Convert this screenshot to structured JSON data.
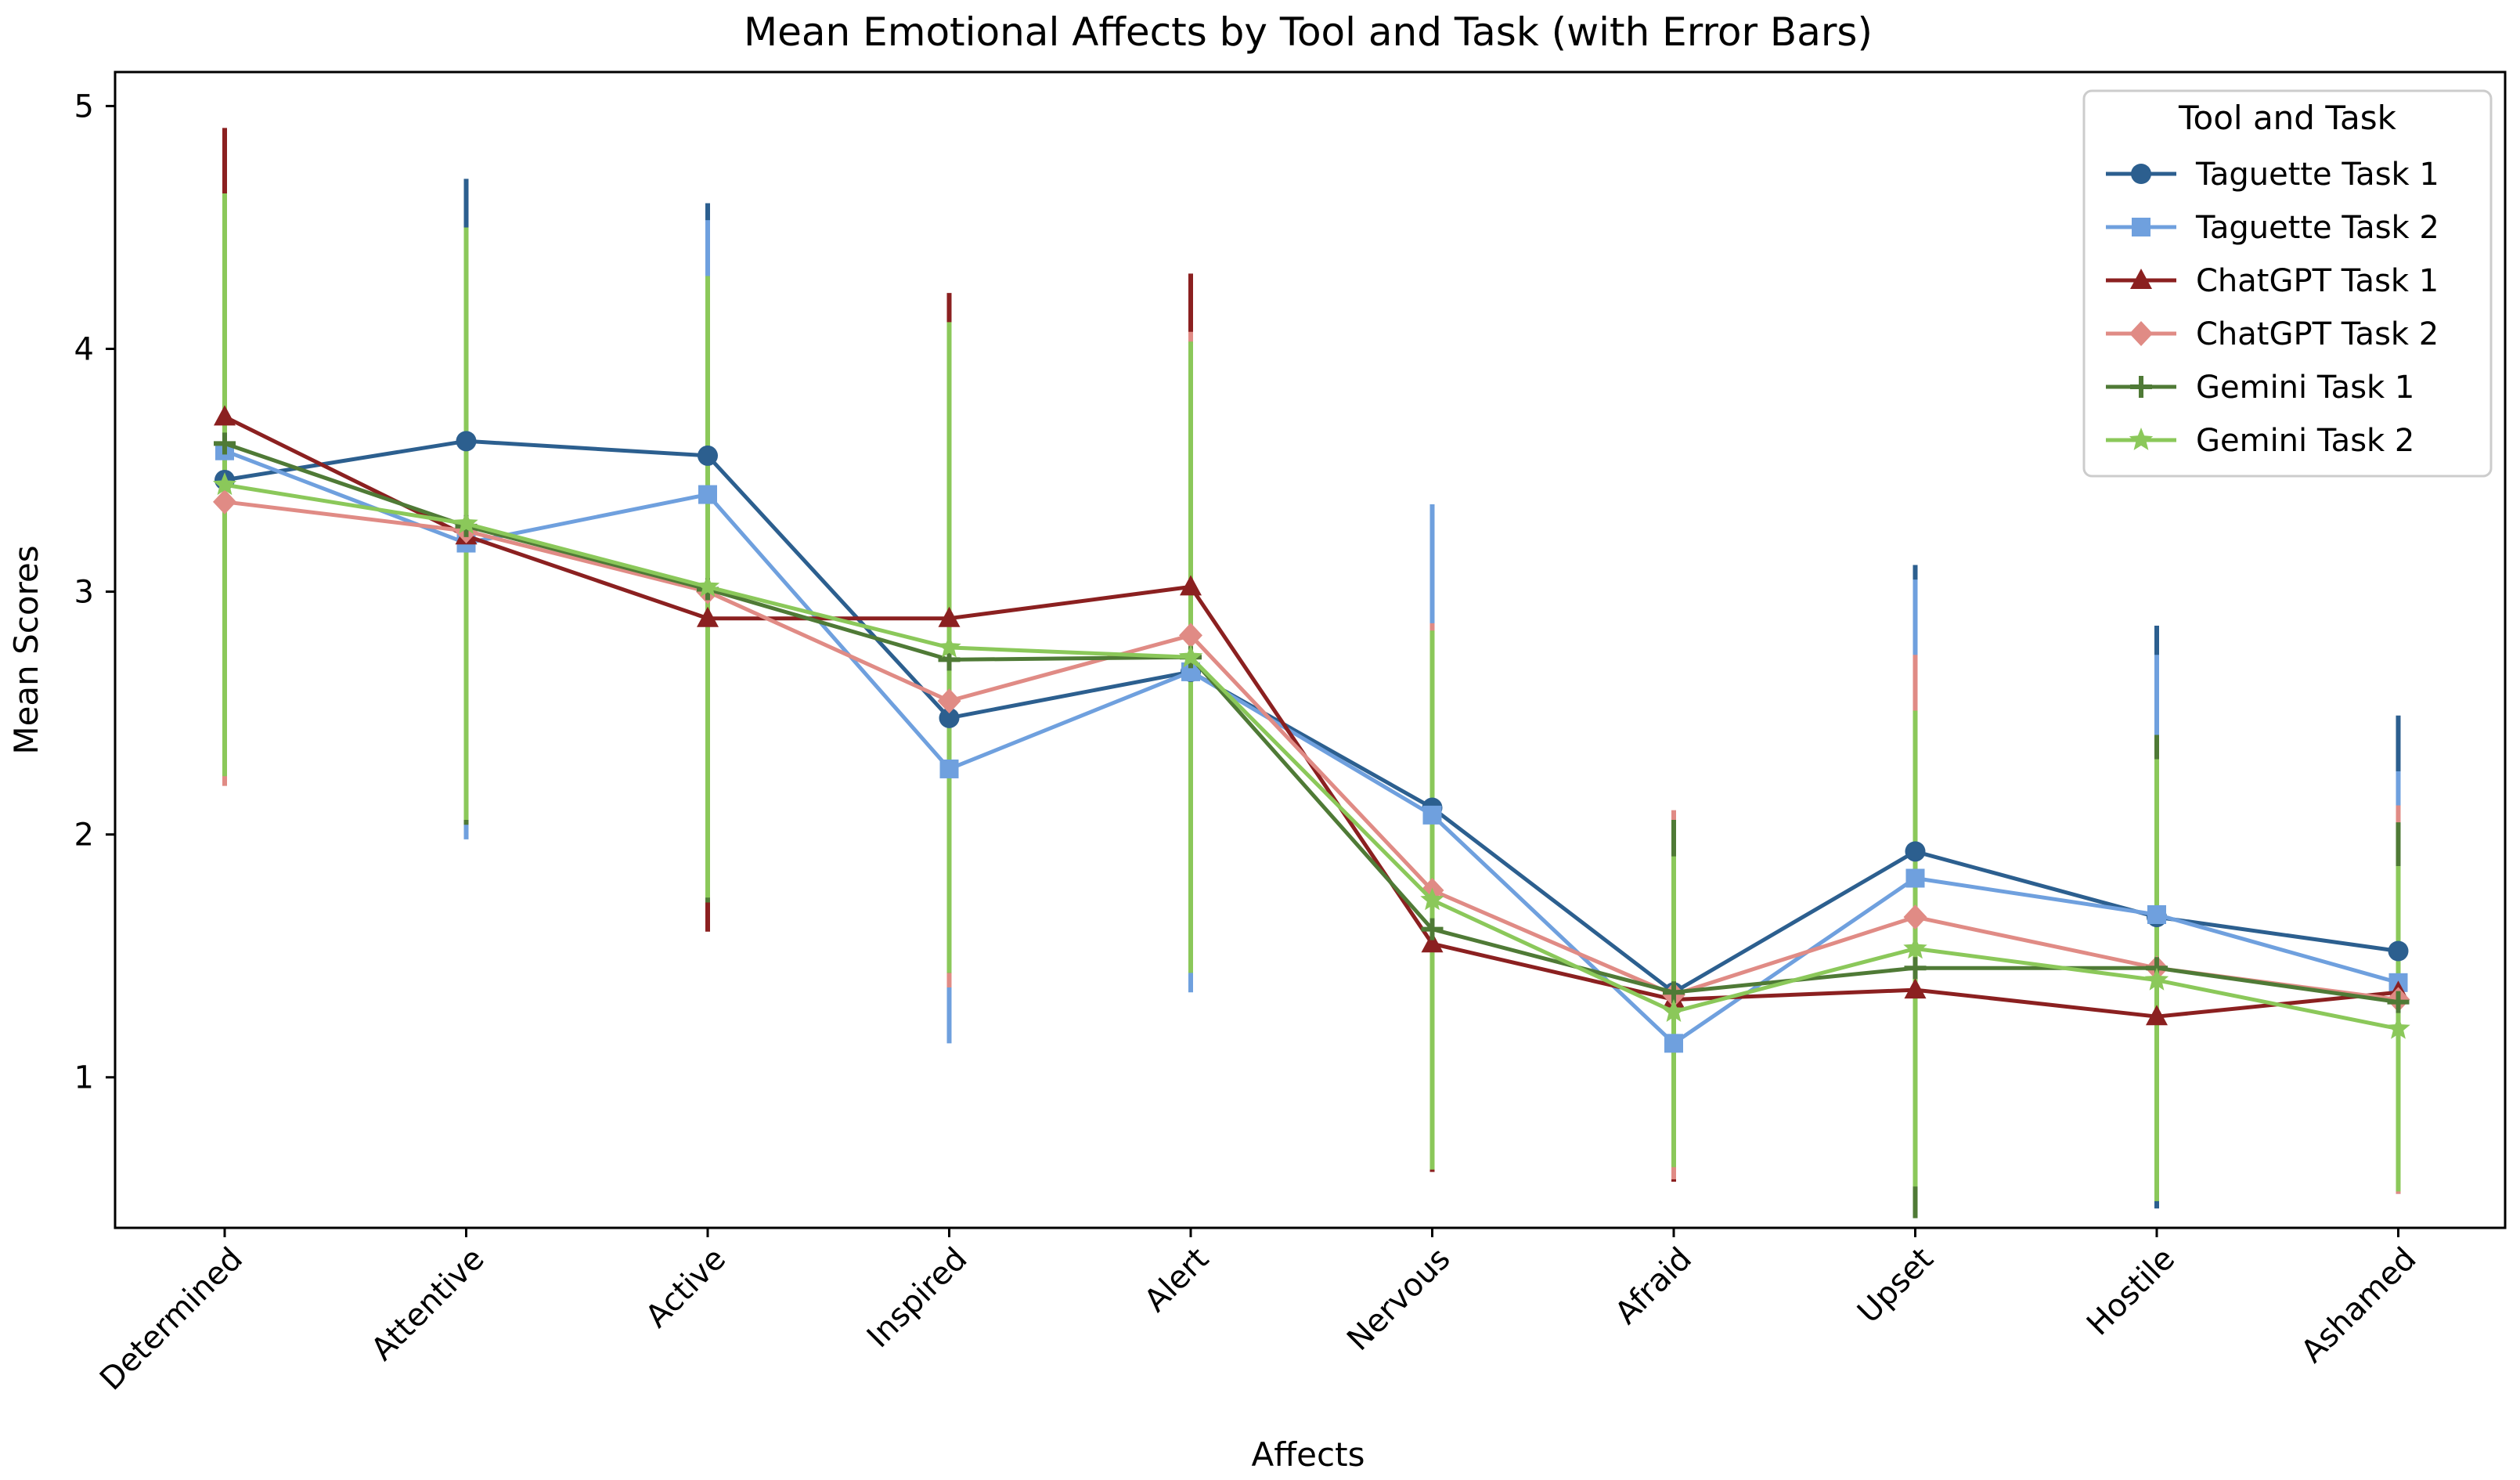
{
  "chart_data": {
    "type": "line",
    "title": "Mean Emotional Affects by Tool and Task (with Error Bars)",
    "xlabel": "Affects",
    "ylabel": "Mean Scores",
    "ylim": [
      0.38,
      5.14
    ],
    "yticks": [
      "1",
      "2",
      "3",
      "4",
      "5"
    ],
    "categories": [
      "Determined",
      "Attentive",
      "Active",
      "Inspired",
      "Alert",
      "Nervous",
      "Afraid",
      "Upset",
      "Hostile",
      "Ashamed"
    ],
    "legend": {
      "title": "Tool and Task",
      "position": "top-right"
    },
    "series": [
      {
        "name": "Taguette Task 1",
        "color": "#2c5f8f",
        "marker": "circle",
        "values": [
          3.46,
          3.62,
          3.56,
          2.48,
          2.67,
          2.11,
          1.35,
          1.93,
          1.66,
          1.52
        ],
        "err": [
          1.2,
          1.08,
          1.04,
          1.18,
          1.3,
          1.05,
          0.73,
          1.18,
          1.2,
          0.97
        ]
      },
      {
        "name": "Taguette Task 2",
        "color": "#6fa0de",
        "marker": "square",
        "values": [
          3.58,
          3.2,
          3.4,
          2.27,
          2.67,
          2.08,
          1.14,
          1.82,
          1.67,
          1.39
        ],
        "err": [
          1.05,
          1.22,
          1.13,
          1.13,
          1.32,
          1.28,
          0.53,
          1.23,
          1.07,
          0.87
        ]
      },
      {
        "name": "ChatGPT Task 1",
        "color": "#8b2020",
        "marker": "triangle",
        "values": [
          3.72,
          3.23,
          2.89,
          2.89,
          3.02,
          1.55,
          1.32,
          1.36,
          1.25,
          1.35
        ],
        "err": [
          1.19,
          1.16,
          1.29,
          1.34,
          1.29,
          0.94,
          0.75,
          0.78,
          0.76,
          0.77
        ]
      },
      {
        "name": "ChatGPT Task 2",
        "color": "#e08b85",
        "marker": "diamond",
        "values": [
          3.37,
          3.25,
          3.0,
          2.55,
          2.82,
          1.77,
          1.34,
          1.66,
          1.45,
          1.32
        ],
        "err": [
          1.17,
          1.15,
          1.27,
          1.18,
          1.25,
          1.1,
          0.76,
          1.08,
          0.94,
          0.8
        ]
      },
      {
        "name": "Gemini Task 1",
        "color": "#4f7a36",
        "marker": "plus",
        "values": [
          3.61,
          3.27,
          3.01,
          2.72,
          2.73,
          1.61,
          1.35,
          1.45,
          1.45,
          1.31
        ],
        "err": [
          1.03,
          1.23,
          1.29,
          1.29,
          1.29,
          0.98,
          0.71,
          1.03,
          0.96,
          0.74
        ]
      },
      {
        "name": "Gemini Task 2",
        "color": "#8bc85a",
        "marker": "star",
        "values": [
          3.44,
          3.28,
          3.02,
          2.77,
          2.73,
          1.73,
          1.27,
          1.53,
          1.4,
          1.2
        ],
        "err": [
          1.2,
          1.22,
          1.28,
          1.34,
          1.3,
          1.11,
          0.64,
          0.98,
          0.91,
          0.67
        ]
      }
    ]
  }
}
